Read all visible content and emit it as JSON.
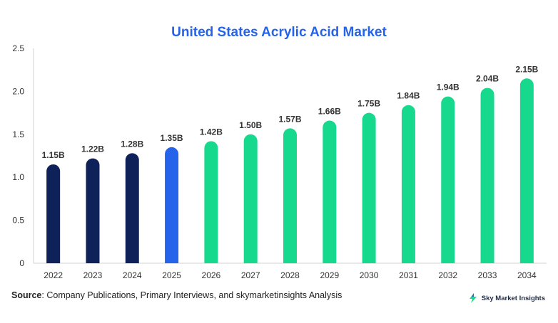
{
  "chart_data": {
    "type": "bar",
    "title": "United States Acrylic Acid Market",
    "categories": [
      "2022",
      "2023",
      "2024",
      "2025",
      "2026",
      "2027",
      "2028",
      "2029",
      "2030",
      "2031",
      "2032",
      "2033",
      "2034"
    ],
    "values": [
      1.15,
      1.22,
      1.28,
      1.35,
      1.42,
      1.5,
      1.57,
      1.66,
      1.75,
      1.84,
      1.94,
      2.04,
      2.15
    ],
    "data_labels": [
      "1.15B",
      "1.22B",
      "1.28B",
      "1.35B",
      "1.42B",
      "1.50B",
      "1.57B",
      "1.66B",
      "1.75B",
      "1.84B",
      "1.94B",
      "2.04B",
      "2.15B"
    ],
    "bar_colors": [
      "#0e2158",
      "#0e2158",
      "#0e2158",
      "#2563eb",
      "#17d98e",
      "#17d98e",
      "#17d98e",
      "#17d98e",
      "#17d98e",
      "#17d98e",
      "#17d98e",
      "#17d98e",
      "#17d98e"
    ],
    "ylim": [
      0,
      2.5
    ],
    "yticks": [
      "0",
      "0.5",
      "1.0",
      "1.5",
      "2.0",
      "2.5"
    ],
    "ytick_values": [
      0,
      0.5,
      1.0,
      1.5,
      2.0,
      2.5
    ],
    "grid": false,
    "xlabel": "",
    "ylabel": ""
  },
  "colors": {
    "title": "#2563eb",
    "axis": "#d0d0d0",
    "brand_icon": "#17d98e",
    "brand_icon_dark": "#2563eb"
  },
  "footer": {
    "source_label": "Source",
    "source_text": ": Company Publications, Primary Interviews, and skymarketinsights Analysis"
  },
  "brand": {
    "name": "Sky Market Insights",
    "icon": "lightning-logo-icon"
  }
}
